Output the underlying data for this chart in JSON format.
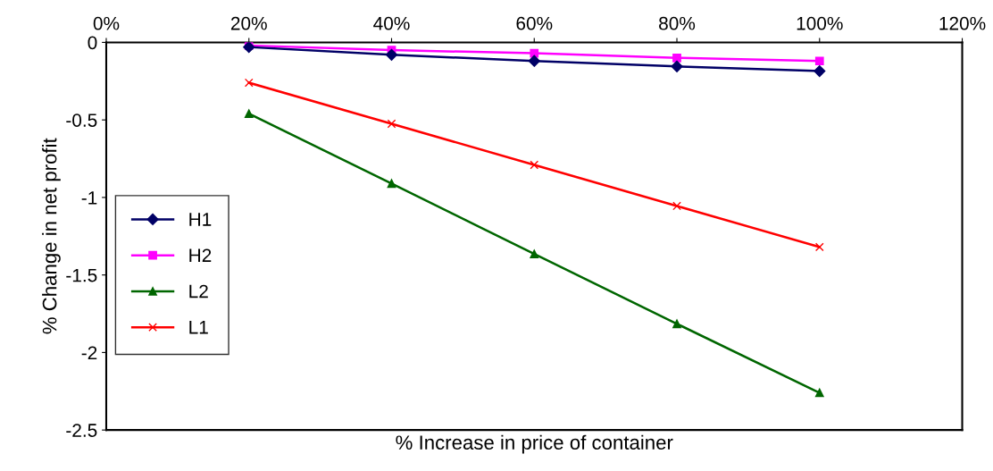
{
  "chart_data": {
    "type": "line",
    "xlabel": "% Increase in price of container",
    "ylabel": "% Change in net profit",
    "x": [
      20,
      40,
      60,
      80,
      100
    ],
    "series": [
      {
        "name": "H1",
        "color": "#000066",
        "marker": "diamond",
        "values": [
          -0.03,
          -0.08,
          -0.12,
          -0.155,
          -0.185
        ]
      },
      {
        "name": "H2",
        "color": "#ff00ff",
        "marker": "square",
        "values": [
          -0.02,
          -0.05,
          -0.07,
          -0.1,
          -0.12
        ]
      },
      {
        "name": "L2",
        "color": "#006600",
        "marker": "triangle",
        "values": [
          -0.46,
          -0.91,
          -1.365,
          -1.815,
          -2.26
        ]
      },
      {
        "name": "L1",
        "color": "#ff0000",
        "marker": "cross",
        "values": [
          -0.26,
          -0.525,
          -0.79,
          -1.055,
          -1.32
        ]
      }
    ],
    "xlim": [
      0,
      120
    ],
    "xticks": [
      {
        "value": 0,
        "label": "0%"
      },
      {
        "value": 20,
        "label": "20%"
      },
      {
        "value": 40,
        "label": "40%"
      },
      {
        "value": 60,
        "label": "60%"
      },
      {
        "value": 80,
        "label": "80%"
      },
      {
        "value": 100,
        "label": "100%"
      },
      {
        "value": 120,
        "label": "120%"
      }
    ],
    "ylim": [
      -2.5,
      0
    ],
    "yticks": [
      {
        "value": 0,
        "label": "0"
      },
      {
        "value": -0.5,
        "label": "-0.5"
      },
      {
        "value": -1,
        "label": "-1"
      },
      {
        "value": -1.5,
        "label": "-1.5"
      },
      {
        "value": -2,
        "label": "-2"
      },
      {
        "value": -2.5,
        "label": "-2.5"
      }
    ],
    "grid": false,
    "legend": "center left",
    "line_style": "solid"
  }
}
